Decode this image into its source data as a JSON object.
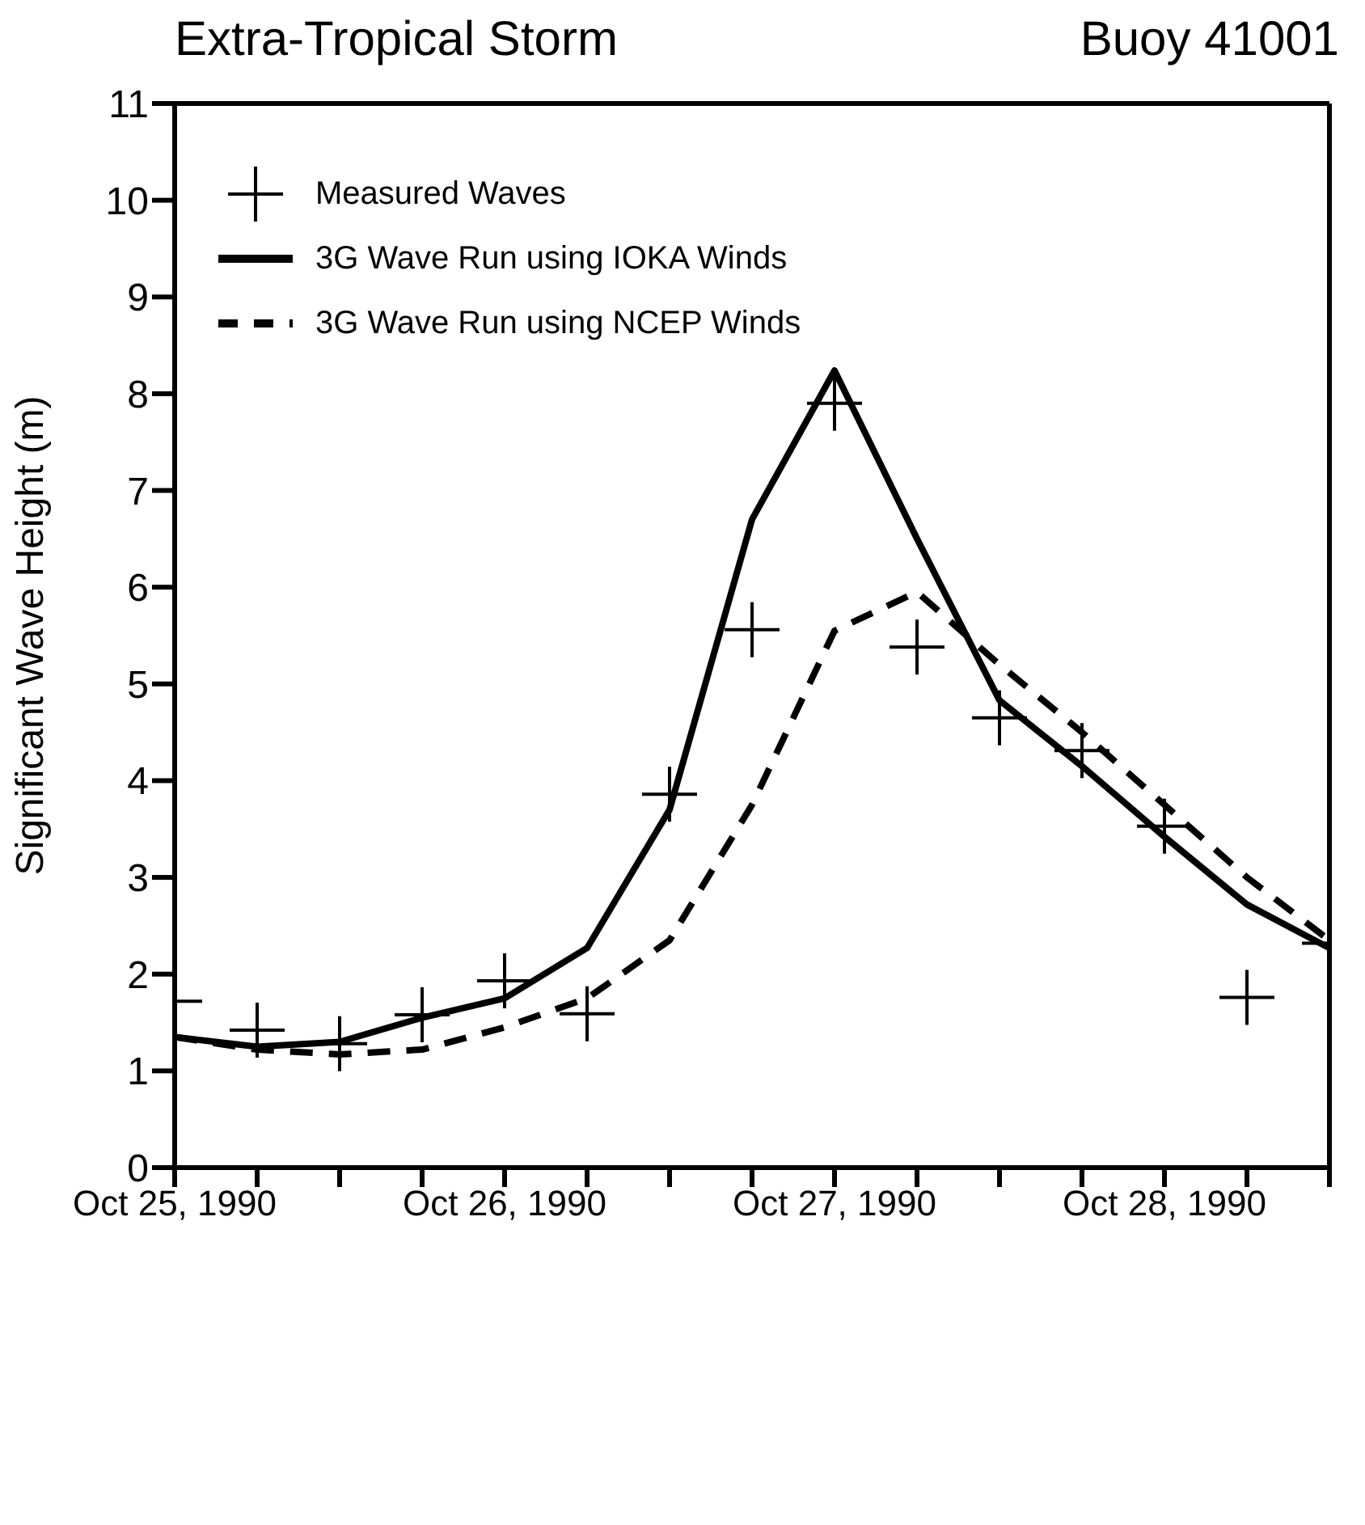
{
  "chart_data": {
    "type": "line",
    "title": "Extra-Tropical Storm",
    "subtitle": "Buoy 41001",
    "ylabel": "Significant Wave Height (m)",
    "x": [
      "1990-10-25T00:00",
      "1990-10-25T06:00",
      "1990-10-25T12:00",
      "1990-10-25T18:00",
      "1990-10-26T00:00",
      "1990-10-26T06:00",
      "1990-10-26T12:00",
      "1990-10-26T18:00",
      "1990-10-27T00:00",
      "1990-10-27T06:00",
      "1990-10-27T12:00",
      "1990-10-27T18:00",
      "1990-10-28T00:00",
      "1990-10-28T06:00",
      "1990-10-28T12:00"
    ],
    "series": [
      {
        "name": "Measured Waves",
        "type": "scatter",
        "marker": "cross",
        "color": "#000000",
        "values": [
          1.72,
          1.42,
          1.28,
          1.58,
          1.93,
          1.59,
          3.86,
          5.56,
          7.9,
          5.38,
          4.65,
          4.31,
          3.53,
          1.76,
          2.32
        ]
      },
      {
        "name": "3G Wave Run using IOKA Winds",
        "type": "line",
        "marker": "none",
        "line_style": "solid",
        "color": "#000000",
        "values": [
          1.35,
          1.25,
          1.3,
          1.55,
          1.75,
          2.27,
          3.7,
          6.7,
          8.24,
          6.5,
          4.83,
          4.15,
          3.42,
          2.72,
          2.27
        ]
      },
      {
        "name": "3G Wave Run using NCEP Winds",
        "type": "line",
        "marker": "none",
        "line_style": "dashed",
        "color": "#000000",
        "values": [
          1.35,
          1.22,
          1.17,
          1.22,
          1.45,
          1.75,
          2.35,
          3.75,
          5.55,
          5.95,
          5.2,
          4.5,
          3.75,
          3.0,
          2.35
        ]
      }
    ],
    "xlim": [
      "1990-10-25T00:00",
      "1990-10-28T12:00"
    ],
    "xticks": [
      {
        "value": "1990-10-25T00:00",
        "label": "Oct 25, 1990"
      },
      {
        "value": "1990-10-25T06:00",
        "label": null
      },
      {
        "value": "1990-10-25T12:00",
        "label": null
      },
      {
        "value": "1990-10-25T18:00",
        "label": null
      },
      {
        "value": "1990-10-26T00:00",
        "label": "Oct 26, 1990"
      },
      {
        "value": "1990-10-26T06:00",
        "label": null
      },
      {
        "value": "1990-10-26T12:00",
        "label": null
      },
      {
        "value": "1990-10-26T18:00",
        "label": null
      },
      {
        "value": "1990-10-27T00:00",
        "label": "Oct 27, 1990"
      },
      {
        "value": "1990-10-27T06:00",
        "label": null
      },
      {
        "value": "1990-10-27T12:00",
        "label": null
      },
      {
        "value": "1990-10-27T18:00",
        "label": null
      },
      {
        "value": "1990-10-28T00:00",
        "label": "Oct 28, 1990"
      },
      {
        "value": "1990-10-28T06:00",
        "label": null
      },
      {
        "value": "1990-10-28T12:00",
        "label": null
      }
    ],
    "ylim": [
      0,
      11
    ],
    "yticks": [
      0,
      1,
      2,
      3,
      4,
      5,
      6,
      7,
      8,
      9,
      10,
      11
    ],
    "grid": false,
    "legend": "top left"
  }
}
